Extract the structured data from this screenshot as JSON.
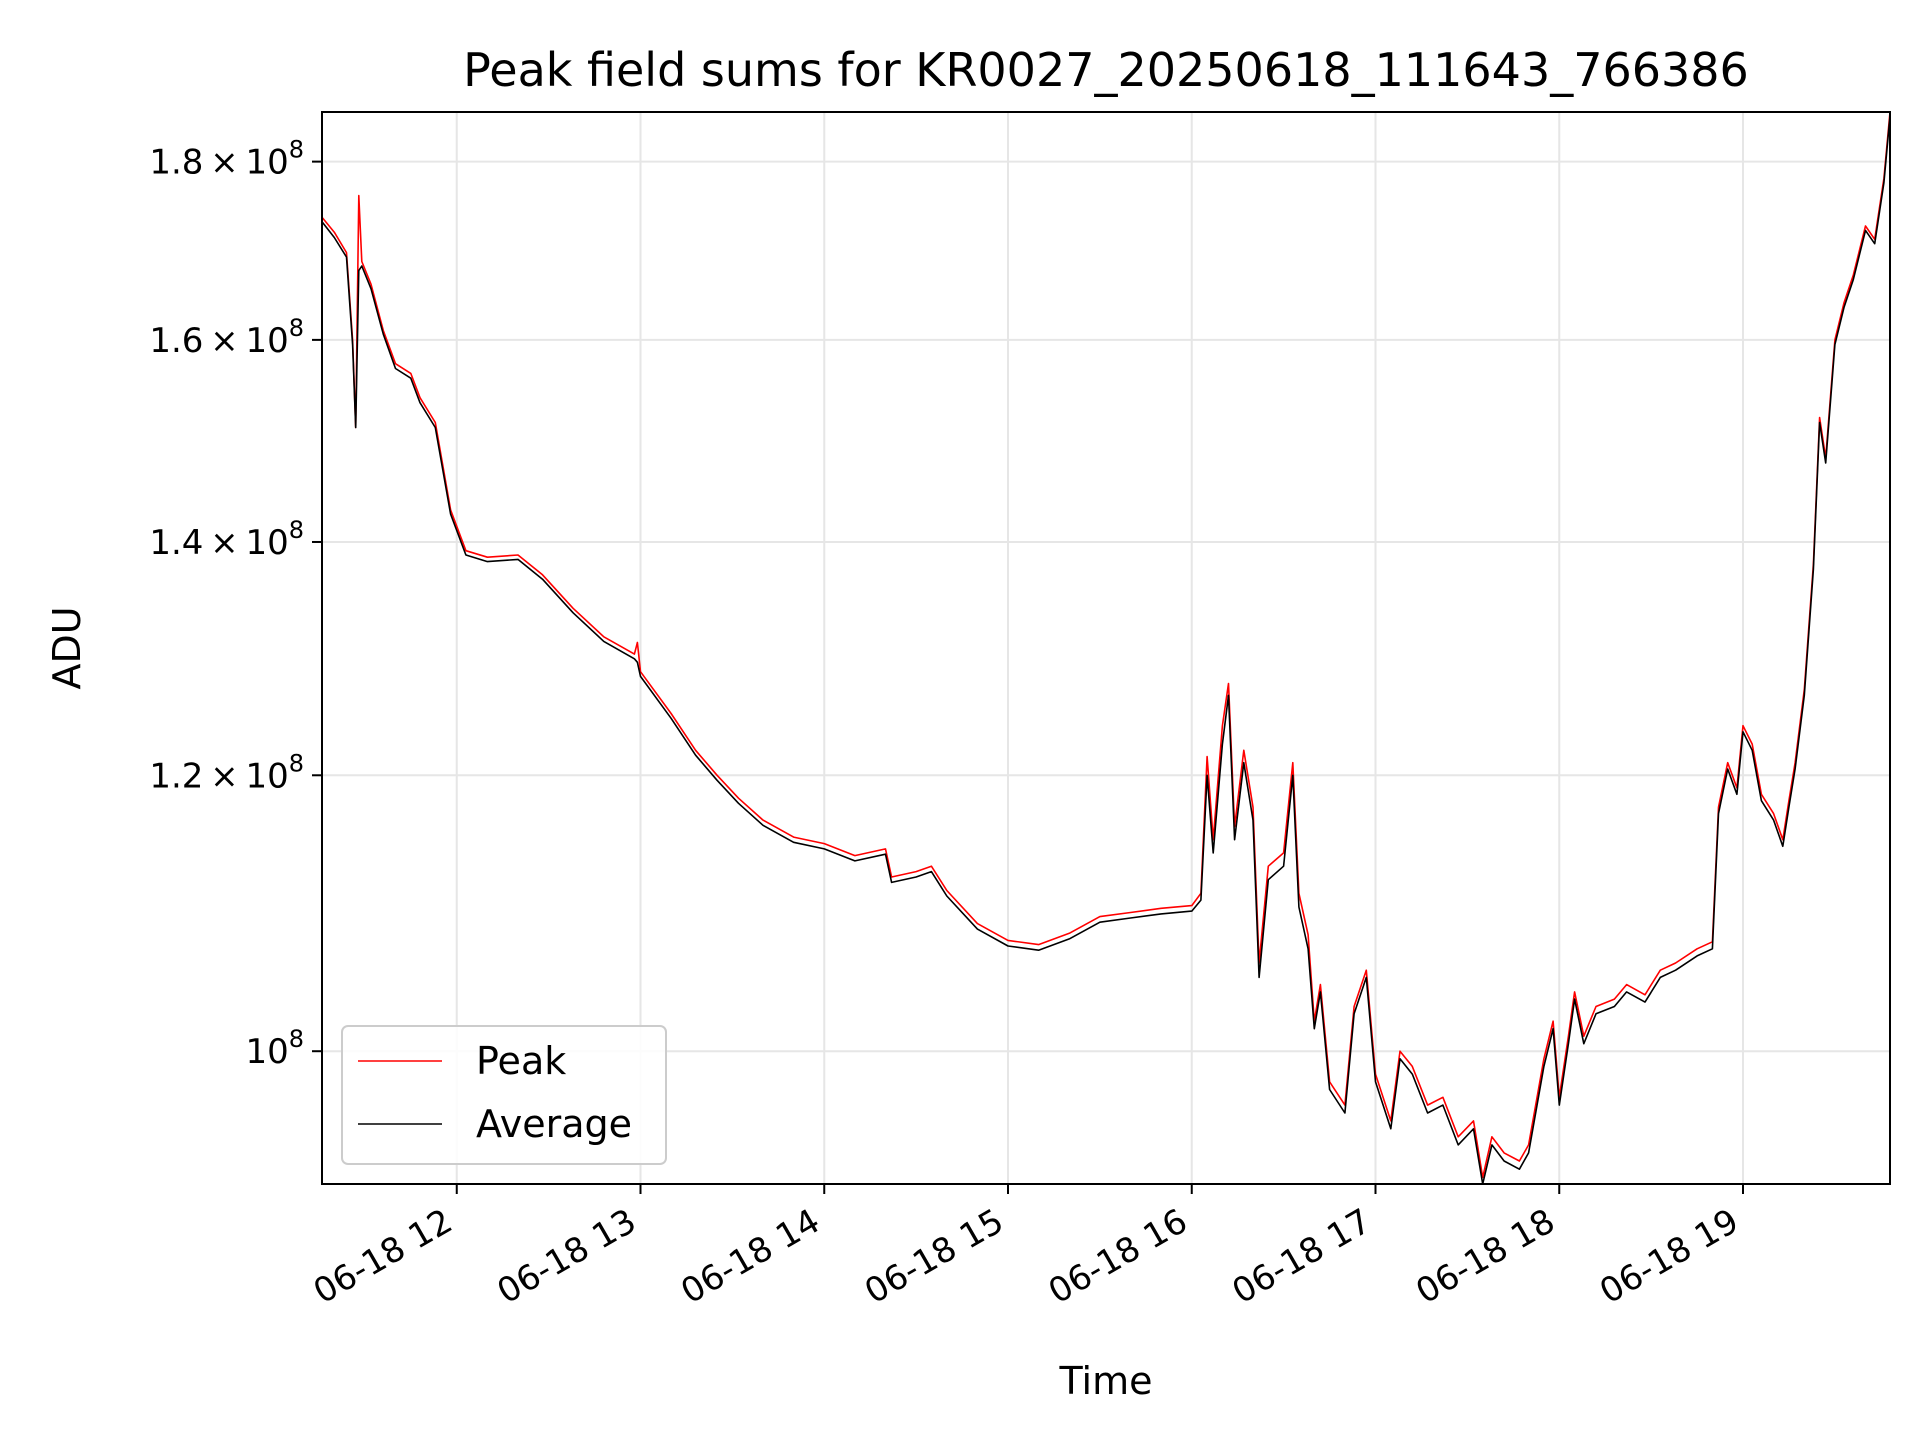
{
  "chart_data": {
    "type": "line",
    "title": "Peak field sums for KR0027_20250618_111643_766386",
    "xlabel": "Time",
    "ylabel": "ADU",
    "yscale": "log",
    "grid": true,
    "legend_position": "lower-left",
    "xlim": [
      "06-18 11:16",
      "06-18 19:48"
    ],
    "ylim": [
      91600000,
      186000000
    ],
    "x_ticks": [
      "06-18 12",
      "06-18 13",
      "06-18 14",
      "06-18 15",
      "06-18 16",
      "06-18 17",
      "06-18 18",
      "06-18 19"
    ],
    "y_ticks": [
      {
        "value": 100000000,
        "mantissa": "",
        "exponent": "8"
      },
      {
        "value": 120000000,
        "mantissa": "1.2",
        "exponent": "8"
      },
      {
        "value": 140000000,
        "mantissa": "1.4",
        "exponent": "8"
      },
      {
        "value": 160000000,
        "mantissa": "1.6",
        "exponent": "8"
      },
      {
        "value": 180000000,
        "mantissa": "1.8",
        "exponent": "8"
      }
    ],
    "series": [
      {
        "name": "Peak",
        "color": "#ff0000",
        "points": [
          [
            "06-18 11:16",
            173500000
          ],
          [
            "06-18 11:20",
            171800000
          ],
          [
            "06-18 11:24",
            169500000
          ],
          [
            "06-18 11:26",
            160000000
          ],
          [
            "06-18 11:27",
            151000000
          ],
          [
            "06-18 11:28",
            176000000
          ],
          [
            "06-18 11:29",
            168500000
          ],
          [
            "06-18 11:32",
            166000000
          ],
          [
            "06-18 11:36",
            161000000
          ],
          [
            "06-18 11:40",
            157500000
          ],
          [
            "06-18 11:45",
            156500000
          ],
          [
            "06-18 11:48",
            154000000
          ],
          [
            "06-18 11:53",
            151500000
          ],
          [
            "06-18 11:58",
            143000000
          ],
          [
            "06-18 12:03",
            139200000
          ],
          [
            "06-18 12:10",
            138600000
          ],
          [
            "06-18 12:20",
            138800000
          ],
          [
            "06-18 12:28",
            137000000
          ],
          [
            "06-18 12:38",
            134000000
          ],
          [
            "06-18 12:48",
            131500000
          ],
          [
            "06-18 12:58",
            130000000
          ],
          [
            "06-18 12:59",
            131000000
          ],
          [
            "06-18 13:00",
            128500000
          ],
          [
            "06-18 13:10",
            125000000
          ],
          [
            "06-18 13:18",
            122000000
          ],
          [
            "06-18 13:25",
            120000000
          ],
          [
            "06-18 13:32",
            118200000
          ],
          [
            "06-18 13:40",
            116500000
          ],
          [
            "06-18 13:50",
            115200000
          ],
          [
            "06-18 14:00",
            114700000
          ],
          [
            "06-18 14:10",
            113800000
          ],
          [
            "06-18 14:20",
            114300000
          ],
          [
            "06-18 14:22",
            112200000
          ],
          [
            "06-18 14:30",
            112600000
          ],
          [
            "06-18 14:35",
            113000000
          ],
          [
            "06-18 14:40",
            111200000
          ],
          [
            "06-18 14:50",
            108800000
          ],
          [
            "06-18 15:00",
            107600000
          ],
          [
            "06-18 15:10",
            107300000
          ],
          [
            "06-18 15:20",
            108100000
          ],
          [
            "06-18 15:30",
            109300000
          ],
          [
            "06-18 15:40",
            109600000
          ],
          [
            "06-18 15:50",
            109900000
          ],
          [
            "06-18 16:00",
            110100000
          ],
          [
            "06-18 16:03",
            111000000
          ],
          [
            "06-18 16:05",
            121500000
          ],
          [
            "06-18 16:07",
            115000000
          ],
          [
            "06-18 16:10",
            124000000
          ],
          [
            "06-18 16:12",
            127500000
          ],
          [
            "06-18 16:14",
            116000000
          ],
          [
            "06-18 16:17",
            122000000
          ],
          [
            "06-18 16:20",
            117500000
          ],
          [
            "06-18 16:22",
            106000000
          ],
          [
            "06-18 16:25",
            113000000
          ],
          [
            "06-18 16:30",
            114000000
          ],
          [
            "06-18 16:33",
            121000000
          ],
          [
            "06-18 16:35",
            111000000
          ],
          [
            "06-18 16:38",
            108000000
          ],
          [
            "06-18 16:40",
            102000000
          ],
          [
            "06-18 16:42",
            104500000
          ],
          [
            "06-18 16:45",
            98000000
          ],
          [
            "06-18 16:50",
            96500000
          ],
          [
            "06-18 16:53",
            103000000
          ],
          [
            "06-18 16:57",
            105500000
          ],
          [
            "06-18 17:00",
            98500000
          ],
          [
            "06-18 17:05",
            95500000
          ],
          [
            "06-18 17:08",
            100000000
          ],
          [
            "06-18 17:12",
            99000000
          ],
          [
            "06-18 17:17",
            96500000
          ],
          [
            "06-18 17:22",
            97000000
          ],
          [
            "06-18 17:27",
            94500000
          ],
          [
            "06-18 17:32",
            95500000
          ],
          [
            "06-18 17:35",
            92000000
          ],
          [
            "06-18 17:38",
            94500000
          ],
          [
            "06-18 17:42",
            93500000
          ],
          [
            "06-18 17:47",
            93000000
          ],
          [
            "06-18 17:50",
            94000000
          ],
          [
            "06-18 17:55",
            99500000
          ],
          [
            "06-18 17:58",
            102000000
          ],
          [
            "06-18 18:00",
            97000000
          ],
          [
            "06-18 18:03",
            101000000
          ],
          [
            "06-18 18:05",
            104000000
          ],
          [
            "06-18 18:08",
            101000000
          ],
          [
            "06-18 18:12",
            103000000
          ],
          [
            "06-18 18:18",
            103500000
          ],
          [
            "06-18 18:22",
            104500000
          ],
          [
            "06-18 18:28",
            103800000
          ],
          [
            "06-18 18:33",
            105500000
          ],
          [
            "06-18 18:38",
            106000000
          ],
          [
            "06-18 18:45",
            107000000
          ],
          [
            "06-18 18:50",
            107500000
          ],
          [
            "06-18 18:52",
            117500000
          ],
          [
            "06-18 18:55",
            121000000
          ],
          [
            "06-18 18:58",
            119000000
          ],
          [
            "06-18 19:00",
            124000000
          ],
          [
            "06-18 19:03",
            122500000
          ],
          [
            "06-18 19:06",
            118500000
          ],
          [
            "06-18 19:10",
            117000000
          ],
          [
            "06-18 19:13",
            115000000
          ],
          [
            "06-18 19:15",
            118000000
          ],
          [
            "06-18 19:17",
            121000000
          ],
          [
            "06-18 19:20",
            127000000
          ],
          [
            "06-18 19:23",
            138000000
          ],
          [
            "06-18 19:25",
            152000000
          ],
          [
            "06-18 19:27",
            148000000
          ],
          [
            "06-18 19:30",
            160000000
          ],
          [
            "06-18 19:33",
            164000000
          ],
          [
            "06-18 19:36",
            167000000
          ],
          [
            "06-18 19:40",
            172500000
          ],
          [
            "06-18 19:43",
            171000000
          ],
          [
            "06-18 19:46",
            178000000
          ],
          [
            "06-18 19:48",
            186000000
          ]
        ]
      },
      {
        "name": "Average",
        "color": "#000000",
        "points": [
          [
            "06-18 11:16",
            173000000
          ],
          [
            "06-18 11:20",
            171200000
          ],
          [
            "06-18 11:24",
            169000000
          ],
          [
            "06-18 11:26",
            159500000
          ],
          [
            "06-18 11:27",
            151000000
          ],
          [
            "06-18 11:28",
            167500000
          ],
          [
            "06-18 11:29",
            168000000
          ],
          [
            "06-18 11:32",
            165500000
          ],
          [
            "06-18 11:36",
            160600000
          ],
          [
            "06-18 11:40",
            157000000
          ],
          [
            "06-18 11:45",
            156000000
          ],
          [
            "06-18 11:48",
            153500000
          ],
          [
            "06-18 11:53",
            151000000
          ],
          [
            "06-18 11:58",
            142600000
          ],
          [
            "06-18 12:03",
            138800000
          ],
          [
            "06-18 12:10",
            138200000
          ],
          [
            "06-18 12:20",
            138400000
          ],
          [
            "06-18 12:28",
            136600000
          ],
          [
            "06-18 12:38",
            133600000
          ],
          [
            "06-18 12:48",
            131100000
          ],
          [
            "06-18 12:58",
            129600000
          ],
          [
            "06-18 12:59",
            129300000
          ],
          [
            "06-18 13:00",
            128100000
          ],
          [
            "06-18 13:10",
            124600000
          ],
          [
            "06-18 13:18",
            121600000
          ],
          [
            "06-18 13:25",
            119600000
          ],
          [
            "06-18 13:32",
            117800000
          ],
          [
            "06-18 13:40",
            116100000
          ],
          [
            "06-18 13:50",
            114800000
          ],
          [
            "06-18 14:00",
            114300000
          ],
          [
            "06-18 14:10",
            113400000
          ],
          [
            "06-18 14:20",
            113900000
          ],
          [
            "06-18 14:22",
            111800000
          ],
          [
            "06-18 14:30",
            112200000
          ],
          [
            "06-18 14:35",
            112600000
          ],
          [
            "06-18 14:40",
            110800000
          ],
          [
            "06-18 14:50",
            108400000
          ],
          [
            "06-18 15:00",
            107200000
          ],
          [
            "06-18 15:10",
            106900000
          ],
          [
            "06-18 15:20",
            107700000
          ],
          [
            "06-18 15:30",
            108900000
          ],
          [
            "06-18 15:40",
            109200000
          ],
          [
            "06-18 15:50",
            109500000
          ],
          [
            "06-18 16:00",
            109700000
          ],
          [
            "06-18 16:03",
            110500000
          ],
          [
            "06-18 16:05",
            120000000
          ],
          [
            "06-18 16:07",
            114000000
          ],
          [
            "06-18 16:10",
            122500000
          ],
          [
            "06-18 16:12",
            126500000
          ],
          [
            "06-18 16:14",
            115000000
          ],
          [
            "06-18 16:17",
            121000000
          ],
          [
            "06-18 16:20",
            116500000
          ],
          [
            "06-18 16:22",
            105000000
          ],
          [
            "06-18 16:25",
            112000000
          ],
          [
            "06-18 16:30",
            113000000
          ],
          [
            "06-18 16:33",
            120000000
          ],
          [
            "06-18 16:35",
            110000000
          ],
          [
            "06-18 16:38",
            107000000
          ],
          [
            "06-18 16:40",
            101500000
          ],
          [
            "06-18 16:42",
            104000000
          ],
          [
            "06-18 16:45",
            97500000
          ],
          [
            "06-18 16:50",
            96000000
          ],
          [
            "06-18 16:53",
            102500000
          ],
          [
            "06-18 16:57",
            105000000
          ],
          [
            "06-18 17:00",
            98000000
          ],
          [
            "06-18 17:05",
            95000000
          ],
          [
            "06-18 17:08",
            99500000
          ],
          [
            "06-18 17:12",
            98500000
          ],
          [
            "06-18 17:17",
            96000000
          ],
          [
            "06-18 17:22",
            96500000
          ],
          [
            "06-18 17:27",
            94000000
          ],
          [
            "06-18 17:32",
            95000000
          ],
          [
            "06-18 17:35",
            91600000
          ],
          [
            "06-18 17:38",
            94000000
          ],
          [
            "06-18 17:42",
            93000000
          ],
          [
            "06-18 17:47",
            92500000
          ],
          [
            "06-18 17:50",
            93500000
          ],
          [
            "06-18 17:55",
            99000000
          ],
          [
            "06-18 17:58",
            101500000
          ],
          [
            "06-18 18:00",
            96500000
          ],
          [
            "06-18 18:03",
            100500000
          ],
          [
            "06-18 18:05",
            103500000
          ],
          [
            "06-18 18:08",
            100500000
          ],
          [
            "06-18 18:12",
            102500000
          ],
          [
            "06-18 18:18",
            103000000
          ],
          [
            "06-18 18:22",
            104000000
          ],
          [
            "06-18 18:28",
            103300000
          ],
          [
            "06-18 18:33",
            105000000
          ],
          [
            "06-18 18:38",
            105500000
          ],
          [
            "06-18 18:45",
            106500000
          ],
          [
            "06-18 18:50",
            107000000
          ],
          [
            "06-18 18:52",
            117000000
          ],
          [
            "06-18 18:55",
            120500000
          ],
          [
            "06-18 18:58",
            118500000
          ],
          [
            "06-18 19:00",
            123500000
          ],
          [
            "06-18 19:03",
            122000000
          ],
          [
            "06-18 19:06",
            118000000
          ],
          [
            "06-18 19:10",
            116500000
          ],
          [
            "06-18 19:13",
            114500000
          ],
          [
            "06-18 19:15",
            117500000
          ],
          [
            "06-18 19:17",
            120500000
          ],
          [
            "06-18 19:20",
            126500000
          ],
          [
            "06-18 19:23",
            137500000
          ],
          [
            "06-18 19:25",
            151500000
          ],
          [
            "06-18 19:27",
            147500000
          ],
          [
            "06-18 19:30",
            159500000
          ],
          [
            "06-18 19:33",
            163500000
          ],
          [
            "06-18 19:36",
            166500000
          ],
          [
            "06-18 19:40",
            172000000
          ],
          [
            "06-18 19:43",
            170500000
          ],
          [
            "06-18 19:46",
            177500000
          ],
          [
            "06-18 19:48",
            185500000
          ]
        ]
      }
    ]
  }
}
